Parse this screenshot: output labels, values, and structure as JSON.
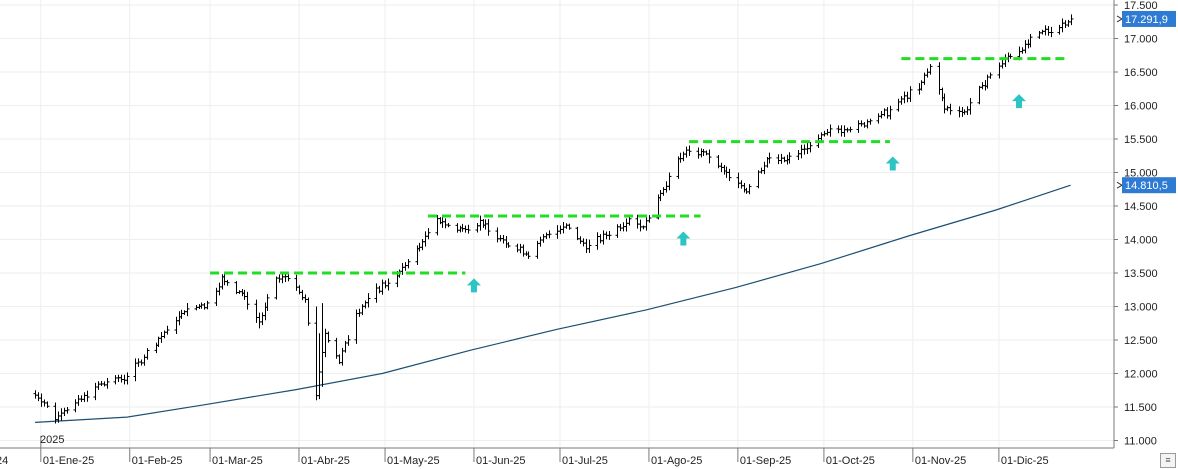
{
  "chart_data": {
    "type": "ohlc",
    "year_marker": "2025",
    "left_edge_tick": "24",
    "x_tick_labels": [
      "01-Ene-25",
      "01-Feb-25",
      "01-Mar-25",
      "01-Abr-25",
      "01-May-25",
      "01-Jun-25",
      "01-Jul-25",
      "01-Ago-25",
      "01-Sep-25",
      "01-Oct-25",
      "01-Nov-25",
      "01-Dic-25"
    ],
    "y_ticks": [
      11000,
      11500,
      12000,
      12500,
      13000,
      13500,
      14000,
      14500,
      15000,
      15500,
      16000,
      16500,
      17000,
      17500
    ],
    "y_tick_labels": [
      "11.000",
      "11.500",
      "12.000",
      "12.500",
      "13.000",
      "13.500",
      "14.000",
      "14.500",
      "15.000",
      "15.500",
      "16.000",
      "16.500",
      "17.000",
      "17.500"
    ],
    "ylim": [
      10900,
      17520
    ],
    "grid": true,
    "series": [
      {
        "type": "ohlc",
        "color": "#000000",
        "description": "weekly price bars (approximate path)",
        "path": [
          [
            "2024-12-30",
            11700
          ],
          [
            "2025-01-06",
            11350
          ],
          [
            "2025-01-14",
            11600
          ],
          [
            "2025-01-22",
            11850
          ],
          [
            "2025-01-31",
            11950
          ],
          [
            "2025-02-10",
            12450
          ],
          [
            "2025-02-20",
            12950
          ],
          [
            "2025-02-28",
            13050
          ],
          [
            "2025-03-05",
            13400
          ],
          [
            "2025-03-12",
            13200
          ],
          [
            "2025-03-18",
            12750
          ],
          [
            "2025-03-24",
            13400
          ],
          [
            "2025-03-28",
            13450
          ],
          [
            "2025-04-03",
            13100
          ],
          [
            "2025-04-07",
            11700
          ],
          [
            "2025-04-10",
            12600
          ],
          [
            "2025-04-15",
            12200
          ],
          [
            "2025-04-21",
            12900
          ],
          [
            "2025-04-28",
            13250
          ],
          [
            "2025-05-05",
            13450
          ],
          [
            "2025-05-13",
            13900
          ],
          [
            "2025-05-19",
            14300
          ],
          [
            "2025-05-26",
            14150
          ],
          [
            "2025-06-03",
            14250
          ],
          [
            "2025-06-12",
            13950
          ],
          [
            "2025-06-20",
            13800
          ],
          [
            "2025-06-27",
            14100
          ],
          [
            "2025-07-03",
            14200
          ],
          [
            "2025-07-10",
            13900
          ],
          [
            "2025-07-17",
            14050
          ],
          [
            "2025-07-25",
            14300
          ],
          [
            "2025-07-30",
            14200
          ],
          [
            "2025-08-05",
            14700
          ],
          [
            "2025-08-13",
            15300
          ],
          [
            "2025-08-20",
            15300
          ],
          [
            "2025-08-27",
            15000
          ],
          [
            "2025-09-04",
            14750
          ],
          [
            "2025-09-11",
            15200
          ],
          [
            "2025-09-19",
            15200
          ],
          [
            "2025-09-26",
            15400
          ],
          [
            "2025-10-02",
            15600
          ],
          [
            "2025-10-13",
            15700
          ],
          [
            "2025-10-23",
            15900
          ],
          [
            "2025-10-30",
            16150
          ],
          [
            "2025-11-03",
            16250
          ],
          [
            "2025-11-07",
            16600
          ],
          [
            "2025-11-12",
            15950
          ],
          [
            "2025-11-19",
            15900
          ],
          [
            "2025-11-26",
            16350
          ],
          [
            "2025-12-03",
            16700
          ],
          [
            "2025-12-10",
            16900
          ],
          [
            "2025-12-17",
            17100
          ],
          [
            "2025-12-23",
            17200
          ],
          [
            "2025-12-26",
            17300
          ]
        ]
      },
      {
        "type": "line",
        "color": "#1b4f72",
        "description": "moving average",
        "points": [
          [
            "2024-12-30",
            11270
          ],
          [
            "2025-01-31",
            11350
          ],
          [
            "2025-02-28",
            11540
          ],
          [
            "2025-03-31",
            11760
          ],
          [
            "2025-04-30",
            12000
          ],
          [
            "2025-05-31",
            12350
          ],
          [
            "2025-06-30",
            12660
          ],
          [
            "2025-07-31",
            12950
          ],
          [
            "2025-08-31",
            13280
          ],
          [
            "2025-09-30",
            13640
          ],
          [
            "2025-10-31",
            14060
          ],
          [
            "2025-11-30",
            14440
          ],
          [
            "2025-12-26",
            14810
          ]
        ]
      }
    ],
    "resistance_lines": [
      {
        "value": 13500,
        "from": "2025-03-01",
        "to": "2025-05-29",
        "color": "#22dd22"
      },
      {
        "value": 14350,
        "from": "2025-05-16",
        "to": "2025-08-19",
        "color": "#22dd22"
      },
      {
        "value": 15460,
        "from": "2025-08-15",
        "to": "2025-10-24",
        "color": "#22dd22"
      },
      {
        "value": 16700,
        "from": "2025-10-28",
        "to": "2025-12-24",
        "color": "#22dd22"
      }
    ],
    "breakout_arrows": [
      {
        "date": "2025-06-01",
        "value": 13300,
        "color": "#2ec4c4"
      },
      {
        "date": "2025-08-13",
        "value": 14000,
        "color": "#2ec4c4"
      },
      {
        "date": "2025-10-25",
        "value": 15120,
        "color": "#2ec4c4"
      },
      {
        "date": "2025-12-08",
        "value": 16050,
        "color": "#2ec4c4"
      }
    ],
    "value_tags": [
      {
        "label": "17.291,9",
        "value": 17291.9,
        "color": "#2f7bd4"
      },
      {
        "label": "14.810,5",
        "value": 14810.5,
        "color": "#2f7bd4"
      }
    ]
  }
}
